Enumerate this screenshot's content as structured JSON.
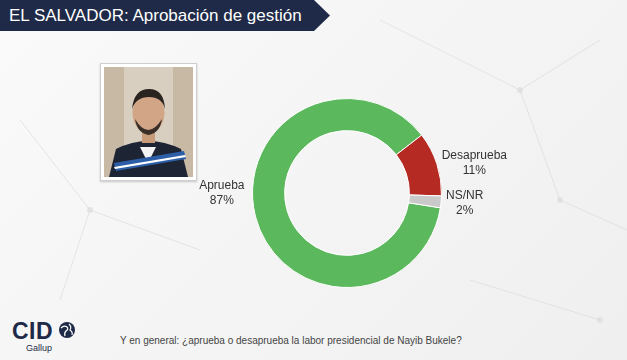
{
  "chart_data": {
    "type": "doughnut",
    "title": "EL SALVADOR: Aprobación de gestión",
    "categories": [
      "Aprueba",
      "Desaprueba",
      "NS/NR"
    ],
    "values": [
      87,
      11,
      2
    ],
    "value_labels": [
      "87%",
      "11%",
      "2%"
    ],
    "colors": [
      "#5cb85c",
      "#b52a22",
      "#c9c9c9"
    ],
    "data_labels": true
  },
  "footer": {
    "question": "Y en general: ¿aprueba o desaprueba la labor presidencial de Nayib Bukele?",
    "logo": "CID",
    "logo_subtitle": "Gallup"
  }
}
